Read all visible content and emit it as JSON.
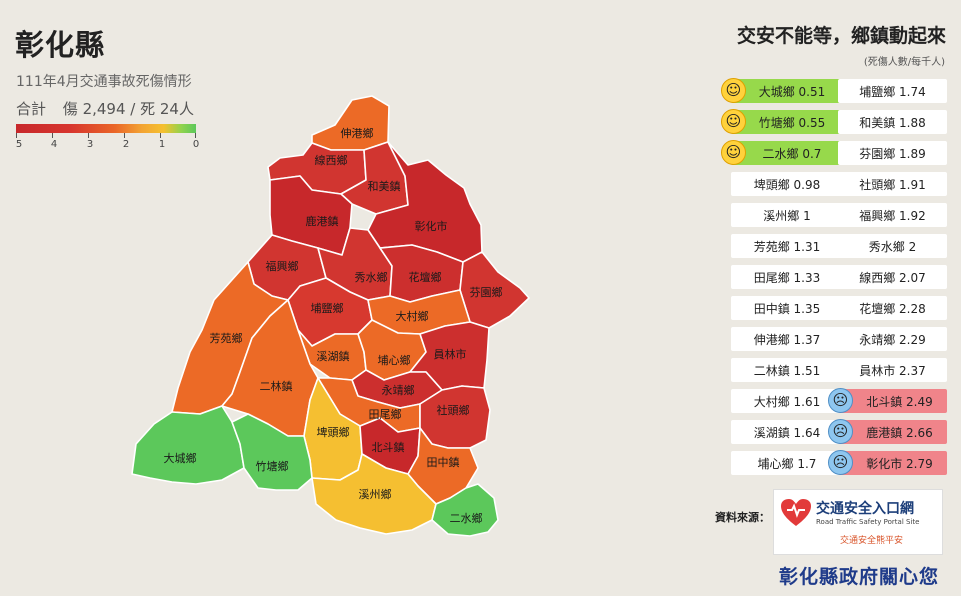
{
  "header": {
    "title": "彰化縣",
    "subtitle": "111年4月交通事故死傷情形",
    "summary_label": "合計",
    "summary_value": "傷 2,494 / 死 24人"
  },
  "legend": {
    "tick_labels": [
      "5",
      "4",
      "3",
      "2",
      "1",
      "0"
    ],
    "colors": [
      "#c7282b",
      "#ea6628",
      "#f5c02f",
      "#5cc85b"
    ]
  },
  "map": {
    "regions": [
      {
        "id": "xiaxianggang",
        "label": "伸港鄉",
        "value": 1.37,
        "color": "#ec6a26"
      },
      {
        "id": "xianxi",
        "label": "線西鄉",
        "value": 2.07,
        "color": "#d13530"
      },
      {
        "id": "hemei",
        "label": "和美鎮",
        "value": 1.88,
        "color": "#d13530"
      },
      {
        "id": "lukang",
        "label": "鹿港鎮",
        "value": 2.66,
        "color": "#c7282b"
      },
      {
        "id": "changhua",
        "label": "彰化市",
        "value": 2.79,
        "color": "#c7282b"
      },
      {
        "id": "fuxing",
        "label": "福興鄉",
        "value": 1.92,
        "color": "#d13530"
      },
      {
        "id": "xiushui",
        "label": "秀水鄉",
        "value": 2,
        "color": "#d13530"
      },
      {
        "id": "huatan",
        "label": "花壇鄉",
        "value": 2.28,
        "color": "#cc2f2e"
      },
      {
        "id": "fenyuan",
        "label": "芬園鄉",
        "value": 1.89,
        "color": "#d13530"
      },
      {
        "id": "puyan",
        "label": "埔鹽鄉",
        "value": 1.74,
        "color": "#d7392f"
      },
      {
        "id": "dacun",
        "label": "大村鄉",
        "value": 1.61,
        "color": "#ec6a26"
      },
      {
        "id": "fangyuan",
        "label": "芳苑鄉",
        "value": 1.31,
        "color": "#ec6a26"
      },
      {
        "id": "xihu",
        "label": "溪湖鎮",
        "value": 1.64,
        "color": "#ec6a26"
      },
      {
        "id": "puxin",
        "label": "埔心鄉",
        "value": 1.7,
        "color": "#ec6a26"
      },
      {
        "id": "yuanlin",
        "label": "員林市",
        "value": 2.37,
        "color": "#cc2f2e"
      },
      {
        "id": "erlin",
        "label": "二林鎮",
        "value": 1.51,
        "color": "#ec6a26"
      },
      {
        "id": "yongjing",
        "label": "永靖鄉",
        "value": 2.29,
        "color": "#cc2f2e"
      },
      {
        "id": "tianwei",
        "label": "田尾鄉",
        "value": 1.33,
        "color": "#ec6a26"
      },
      {
        "id": "shetou",
        "label": "社頭鄉",
        "value": 1.91,
        "color": "#d13530"
      },
      {
        "id": "pitou",
        "label": "埤頭鄉",
        "value": 0.98,
        "color": "#f5bf31"
      },
      {
        "id": "beidou",
        "label": "北斗鎮",
        "value": 2.49,
        "color": "#c7282b"
      },
      {
        "id": "tianzhong",
        "label": "田中鎮",
        "value": 1.35,
        "color": "#ec6a26"
      },
      {
        "id": "dacheng",
        "label": "大城鄉",
        "value": 0.51,
        "color": "#5cc85b"
      },
      {
        "id": "zhutang",
        "label": "竹塘鄉",
        "value": 0.55,
        "color": "#5cc85b"
      },
      {
        "id": "xizhou",
        "label": "溪州鄉",
        "value": 1,
        "color": "#f5bf31"
      },
      {
        "id": "ershui",
        "label": "二水鄉",
        "value": 0.7,
        "color": "#5cc85b"
      }
    ]
  },
  "ranking": {
    "title": "交安不能等，鄉鎮動起來",
    "unit": "(死傷人數/每千人)",
    "left": [
      {
        "label": "大城鄉 0.51",
        "status": "good",
        "face": "smile"
      },
      {
        "label": "竹塘鄉 0.55",
        "status": "good",
        "face": "smile"
      },
      {
        "label": "二水鄉 0.7",
        "status": "good",
        "face": "smile"
      },
      {
        "label": "埤頭鄉 0.98",
        "status": "normal",
        "face": ""
      },
      {
        "label": "溪州鄉 1",
        "status": "normal",
        "face": ""
      },
      {
        "label": "芳苑鄉 1.31",
        "status": "normal",
        "face": ""
      },
      {
        "label": "田尾鄉 1.33",
        "status": "normal",
        "face": ""
      },
      {
        "label": "田中鎮 1.35",
        "status": "normal",
        "face": ""
      },
      {
        "label": "伸港鄉 1.37",
        "status": "normal",
        "face": ""
      },
      {
        "label": "二林鎮 1.51",
        "status": "normal",
        "face": ""
      },
      {
        "label": "大村鄉 1.61",
        "status": "normal",
        "face": ""
      },
      {
        "label": "溪湖鎮 1.64",
        "status": "normal",
        "face": ""
      },
      {
        "label": "埔心鄉 1.7",
        "status": "normal",
        "face": ""
      }
    ],
    "right": [
      {
        "label": "埔鹽鄉 1.74",
        "status": "normal",
        "face": ""
      },
      {
        "label": "和美鎮 1.88",
        "status": "normal",
        "face": ""
      },
      {
        "label": "芬園鄉 1.89",
        "status": "normal",
        "face": ""
      },
      {
        "label": "社頭鄉 1.91",
        "status": "normal",
        "face": ""
      },
      {
        "label": "福興鄉 1.92",
        "status": "normal",
        "face": ""
      },
      {
        "label": "秀水鄉 2",
        "status": "normal",
        "face": ""
      },
      {
        "label": "線西鄉 2.07",
        "status": "normal",
        "face": ""
      },
      {
        "label": "花壇鄉 2.28",
        "status": "normal",
        "face": ""
      },
      {
        "label": "永靖鄉 2.29",
        "status": "normal",
        "face": ""
      },
      {
        "label": "員林市 2.37",
        "status": "normal",
        "face": ""
      },
      {
        "label": "北斗鎮 2.49",
        "status": "bad",
        "face": "worry"
      },
      {
        "label": "鹿港鎮 2.66",
        "status": "bad",
        "face": "worry"
      },
      {
        "label": "彰化市 2.79",
        "status": "bad",
        "face": "worry"
      }
    ]
  },
  "source": {
    "label": "資料來源：",
    "logo_title": "交通安全入口網",
    "logo_subtitle": "Road Traffic Safety Portal Site",
    "logo_slogan": "交通安全熊平安",
    "icon": "heart-logo-icon"
  },
  "footer": {
    "text": "彰化縣政府關心您"
  }
}
